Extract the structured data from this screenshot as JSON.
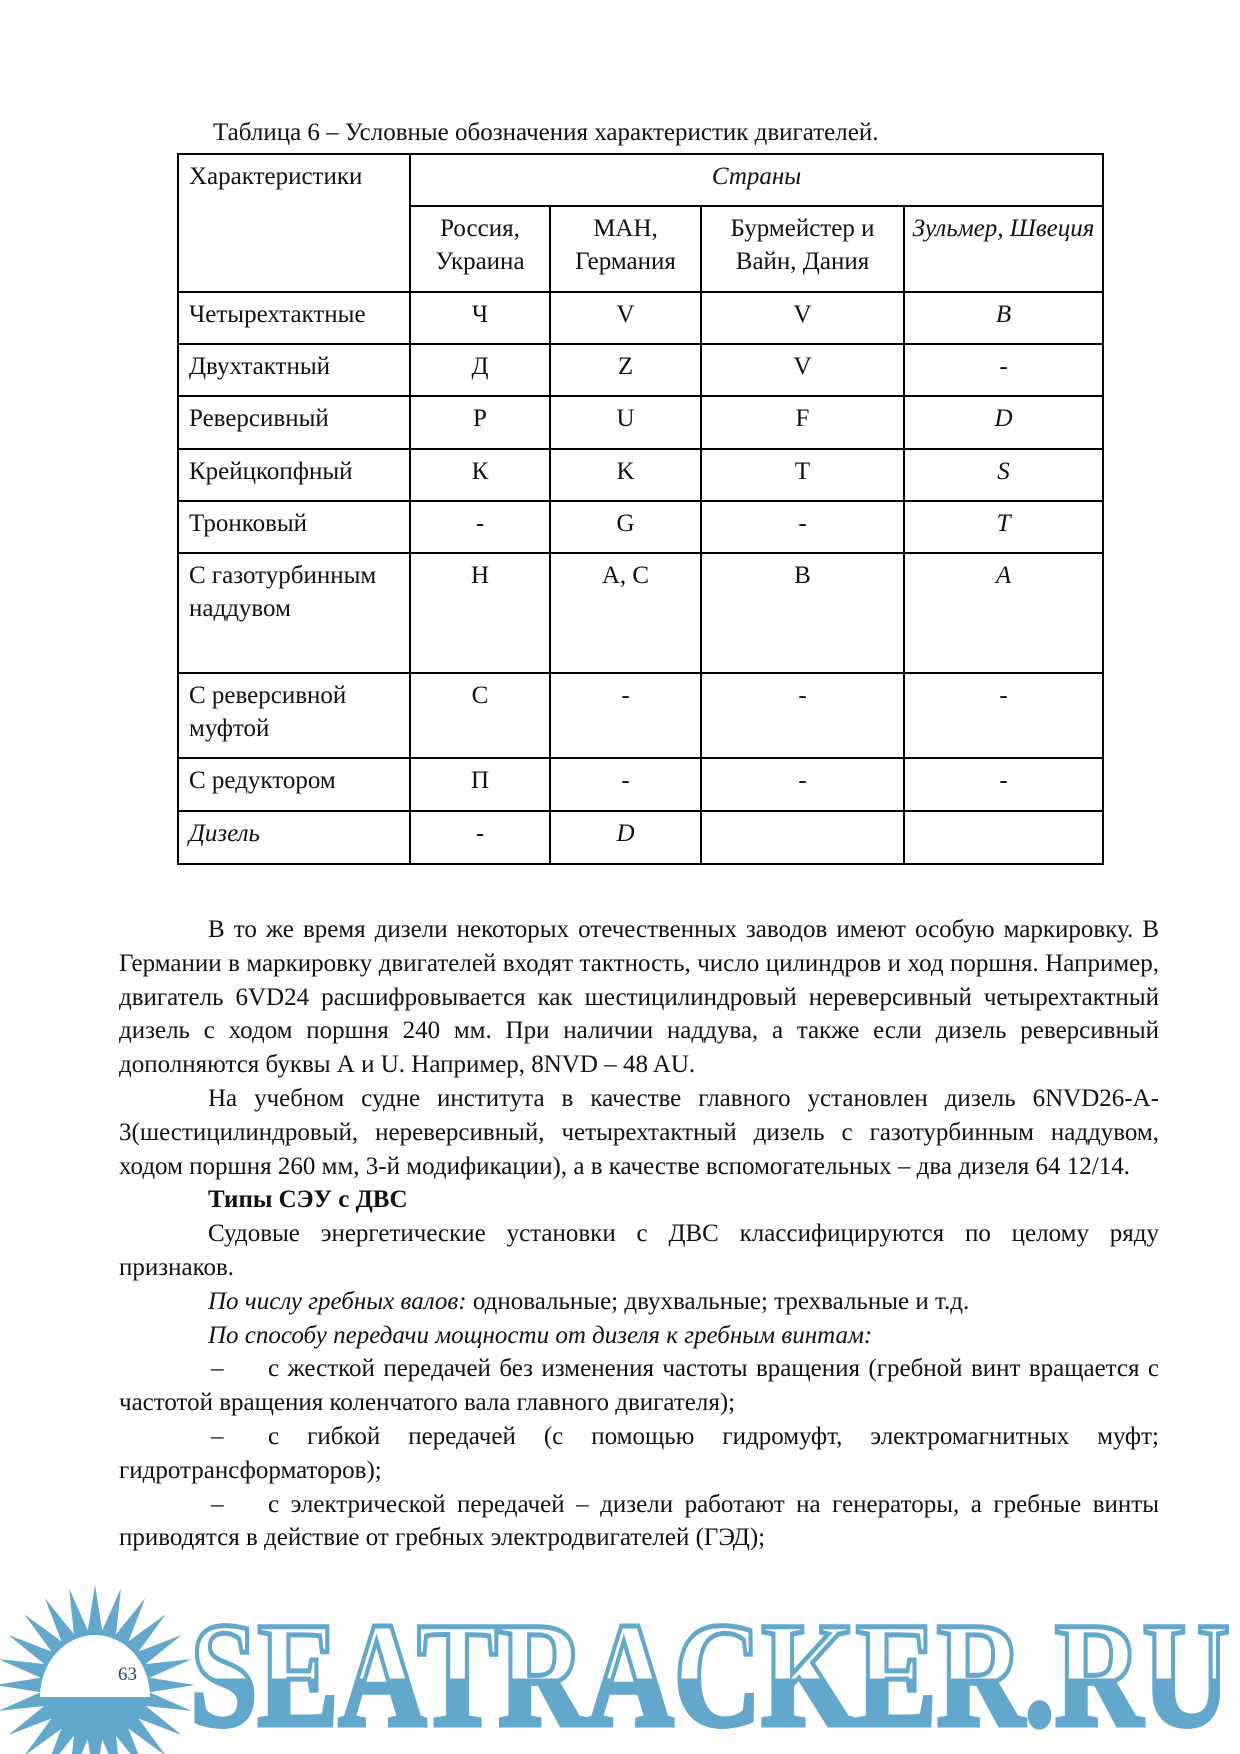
{
  "caption": "Таблица 6 – Условные обозначения характеристик двигателей.",
  "table": {
    "corner": "Характеристики",
    "group": "Страны",
    "columns": [
      "Россия, Украина",
      "МАН, Германия",
      "Бурмейстер и Вайн, Дания",
      "Зульмер, Швеция"
    ],
    "rows": [
      {
        "label": "Четырехтактные",
        "cells": [
          "Ч",
          "V",
          "V",
          "B"
        ]
      },
      {
        "label": "Двухтактный",
        "cells": [
          "Д",
          "Z",
          "V",
          "-"
        ]
      },
      {
        "label": "Реверсивный",
        "cells": [
          "Р",
          "U",
          "F",
          "D"
        ]
      },
      {
        "label": "Крейцкопфный",
        "cells": [
          "К",
          "K",
          "T",
          "S"
        ]
      },
      {
        "label": "Тронковый",
        "cells": [
          "-",
          "G",
          "-",
          "T"
        ]
      },
      {
        "label": "С газотурбинным наддувом",
        "cells": [
          "Н",
          "A, C",
          "B",
          "A"
        ]
      },
      {
        "label": "С реверсивной муфтой",
        "cells": [
          "С",
          "-",
          "-",
          "-"
        ]
      },
      {
        "label": "С редуктором",
        "cells": [
          "П",
          "-",
          "-",
          "-"
        ]
      },
      {
        "label": "Дизель",
        "cells": [
          "-",
          "D",
          "",
          ""
        ]
      }
    ]
  },
  "body": {
    "p1": "В то же время дизели некоторых отечественных заводов имеют особую маркировку. В Германии в маркировку двигателей входят тактность, число цилиндров и ход поршня. Например, двигатель 6VD24 расшифровывается как шестицилиндровый нереверсивный четырехтактный дизель с ходом поршня 240 мм. При наличии наддува, а также если дизель реверсивный дополняются буквы А и U. Например, 8NVD – 48 AU.",
    "p2": "На учебном судне института в качестве главного установлен дизель 6NVD26-A-3(шестицилиндровый, нереверсивный, четырехтактный дизель с газотурбинным наддувом, ходом поршня 260 мм, 3-й модификации), а в качестве вспомогательных – два дизеля 64 12/14.",
    "heading": "Типы СЭУ с ДВС",
    "p3": "Судовые энергетические установки с ДВС классифицируются по целому ряду признаков.",
    "p4_em": "По числу гребных валов:",
    "p4_rest": " одновальные; двухвальные; трехвальные и т.д.",
    "p5_em": "По способу передачи мощности от дизеля к гребным винтам:",
    "dash": "–",
    "items": [
      "с жесткой передачей без изменения частоты вращения (гребной винт вращается с частотой вращения коленчатого вала главного двигателя);",
      "с гибкой передачей (с помощью гидромуфт, электромагнитных муфт; гидротрансформаторов);",
      "с электрической передачей – дизели работают на генераторы, а гребные винты приводятся в действие от гребных электродвигателей (ГЭД);"
    ]
  },
  "page_number": "63",
  "watermark": {
    "text": "SEATRACKER.RU",
    "color": "#62a8cc"
  }
}
